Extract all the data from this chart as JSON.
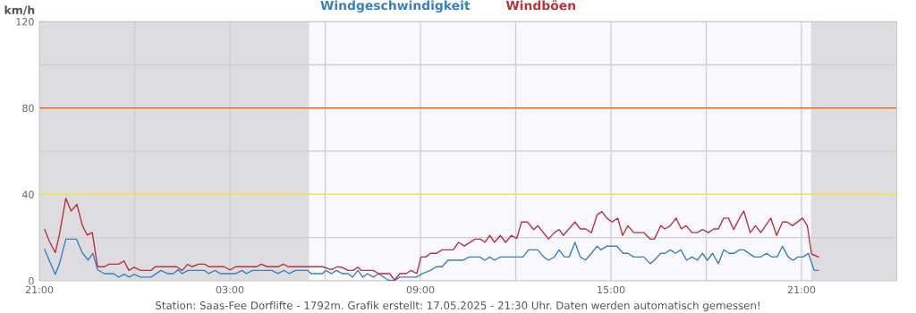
{
  "chart_data": {
    "type": "line",
    "ylabel": "km/h",
    "annotations": [
      "Station: Saas-Fee Dorflifte - 1792m. Grafik erstellt: 17.05.2025 - 21:30 Uhr. Daten werden automatisch gemessen!"
    ],
    "xlim": [
      "2025-05-16T21:00",
      "2025-05-18T00:00"
    ],
    "xticks": [
      {
        "value": "2025-05-16T21:00",
        "label": "21:00"
      },
      {
        "value": "2025-05-17T00:00",
        "label": null
      },
      {
        "value": "2025-05-17T03:00",
        "label": "03:00"
      },
      {
        "value": "2025-05-17T06:00",
        "label": null
      },
      {
        "value": "2025-05-17T09:00",
        "label": "09:00"
      },
      {
        "value": "2025-05-17T12:00",
        "label": null
      },
      {
        "value": "2025-05-17T15:00",
        "label": "15:00"
      },
      {
        "value": "2025-05-17T18:00",
        "label": null
      },
      {
        "value": "2025-05-17T21:00",
        "label": "21:00"
      }
    ],
    "ylim": [
      0,
      120
    ],
    "yticks": [
      0,
      {
        "value": 20,
        "label": null
      },
      40,
      {
        "value": 60,
        "label": null
      },
      80,
      {
        "value": 100,
        "label": null
      },
      120
    ],
    "grid": true,
    "legend": "top",
    "bands": [
      {
        "axis": "x",
        "from": "2025-05-16T21:00",
        "to": "2025-05-17T05:30",
        "color": "#dddde1"
      },
      {
        "axis": "x",
        "from": "2025-05-17T05:30",
        "to": "2025-05-17T21:18",
        "color": "#faf8ff"
      },
      {
        "axis": "x",
        "from": "2025-05-17T21:18",
        "to": "2025-05-18T00:00",
        "color": "#dddde1"
      }
    ],
    "ref_lines": [
      {
        "axis": "y",
        "value": 40,
        "color": "#f0f000"
      },
      {
        "axis": "y",
        "value": 80,
        "color": "#ff6a20"
      },
      {
        "axis": "y",
        "value": 120,
        "color": "#ee82ee"
      }
    ],
    "series": [
      {
        "name": "Windgeschwindigkeit",
        "color": "#3a7fc1",
        "x": [
          "2025-05-16T21:10",
          "2025-05-16T21:19",
          "2025-05-16T21:30",
          "2025-05-16T21:38",
          "2025-05-16T21:50",
          "2025-05-16T22:10",
          "2025-05-16T22:21",
          "2025-05-16T22:32",
          "2025-05-16T22:41",
          "2025-05-16T22:50",
          "2025-05-16T23:03",
          "2025-05-16T23:20",
          "2025-05-16T23:30",
          "2025-05-16T23:40",
          "2025-05-16T23:50",
          "2025-05-16T23:59",
          "2025-05-17T00:11",
          "2025-05-17T00:31",
          "2025-05-17T00:50",
          "2025-05-17T01:02",
          "2025-05-17T01:13",
          "2025-05-17T01:22",
          "2025-05-17T01:30",
          "2025-05-17T01:41",
          "2025-05-17T02:12",
          "2025-05-17T02:20",
          "2025-05-17T02:32",
          "2025-05-17T02:42",
          "2025-05-17T03:11",
          "2025-05-17T03:23",
          "2025-05-17T03:31",
          "2025-05-17T03:43",
          "2025-05-17T04:19",
          "2025-05-17T04:31",
          "2025-05-17T04:42",
          "2025-05-17T04:52",
          "2025-05-17T05:04",
          "2025-05-17T05:27",
          "2025-05-17T05:33",
          "2025-05-17T05:55",
          "2025-05-17T06:01",
          "2025-05-17T06:12",
          "2025-05-17T06:21",
          "2025-05-17T06:32",
          "2025-05-17T06:43",
          "2025-05-17T06:52",
          "2025-05-17T07:02",
          "2025-05-17T07:11",
          "2025-05-17T07:20",
          "2025-05-17T07:31",
          "2025-05-17T07:41",
          "2025-05-17T07:59",
          "2025-05-17T08:10",
          "2025-05-17T08:21",
          "2025-05-17T08:52",
          "2025-05-17T09:04",
          "2025-05-17T09:19",
          "2025-05-17T09:30",
          "2025-05-17T09:41",
          "2025-05-17T09:52",
          "2025-05-17T10:20",
          "2025-05-17T10:32",
          "2025-05-17T10:52",
          "2025-05-17T11:02",
          "2025-05-17T11:11",
          "2025-05-17T11:20",
          "2025-05-17T11:31",
          "2025-05-17T12:14",
          "2025-05-17T12:24",
          "2025-05-17T12:42",
          "2025-05-17T12:53",
          "2025-05-17T13:02",
          "2025-05-17T13:13",
          "2025-05-17T13:22",
          "2025-05-17T13:32",
          "2025-05-17T13:41",
          "2025-05-17T13:52",
          "2025-05-17T14:02",
          "2025-05-17T14:12",
          "2025-05-17T14:23",
          "2025-05-17T14:34",
          "2025-05-17T14:41",
          "2025-05-17T14:52",
          "2025-05-17T15:11",
          "2025-05-17T15:23",
          "2025-05-17T15:32",
          "2025-05-17T15:43",
          "2025-05-17T16:02",
          "2025-05-17T16:14",
          "2025-05-17T16:22",
          "2025-05-17T16:34",
          "2025-05-17T16:42",
          "2025-05-17T16:52",
          "2025-05-17T17:02",
          "2025-05-17T17:12",
          "2025-05-17T17:23",
          "2025-05-17T17:33",
          "2025-05-17T17:43",
          "2025-05-17T17:53",
          "2025-05-17T18:02",
          "2025-05-17T18:12",
          "2025-05-17T18:23",
          "2025-05-17T18:33",
          "2025-05-17T18:43",
          "2025-05-17T18:52",
          "2025-05-17T19:03",
          "2025-05-17T19:11",
          "2025-05-17T19:31",
          "2025-05-17T19:43",
          "2025-05-17T19:54",
          "2025-05-17T20:04",
          "2025-05-17T20:14",
          "2025-05-17T20:24",
          "2025-05-17T20:35",
          "2025-05-17T20:44",
          "2025-05-17T20:53",
          "2025-05-17T21:03",
          "2025-05-17T21:13",
          "2025-05-17T21:24",
          "2025-05-17T21:32"
        ],
        "values": [
          14.5,
          9.2,
          3.0,
          7.9,
          19.3,
          19.3,
          13,
          9.6,
          12.7,
          5.1,
          3.3,
          3.3,
          1.7,
          3.0,
          1.7,
          3.0,
          1.7,
          1.7,
          4.8,
          3.3,
          3.3,
          5.1,
          3.3,
          4.8,
          4.8,
          3.3,
          4.8,
          3.3,
          3.3,
          4.8,
          3.3,
          4.8,
          4.8,
          3.3,
          4.8,
          3.3,
          4.8,
          4.8,
          3.3,
          3.3,
          4.8,
          3.3,
          4.8,
          3.3,
          3.3,
          1.7,
          4.8,
          1.7,
          3.3,
          1.7,
          3.3,
          0.3,
          0,
          1.7,
          1.7,
          3.3,
          4.8,
          6.5,
          6.5,
          9.5,
          9.5,
          11,
          11,
          9.5,
          11,
          9.5,
          11,
          11,
          14.3,
          14.3,
          11,
          9.5,
          11,
          14.3,
          11,
          11,
          17.8,
          11,
          9.6,
          12.7,
          16,
          14.3,
          16,
          16,
          12.7,
          12.7,
          11,
          11,
          7.9,
          9.5,
          12.7,
          12.7,
          14.3,
          12.7,
          14.3,
          9.5,
          11,
          9.5,
          12.7,
          9.5,
          12.7,
          7.9,
          14.3,
          12.7,
          12.7,
          14.3,
          14.3,
          11,
          11,
          12.7,
          11,
          11,
          16,
          11,
          9.5,
          11,
          11,
          12.7,
          4.8,
          4.8
        ]
      },
      {
        "name": "Windböen",
        "color": "#b8333a",
        "x": [
          "2025-05-16T21:10",
          "2025-05-16T21:19",
          "2025-05-16T21:30",
          "2025-05-16T21:38",
          "2025-05-16T21:50",
          "2025-05-16T22:00",
          "2025-05-16T22:11",
          "2025-05-16T22:21",
          "2025-05-16T22:30",
          "2025-05-16T22:40",
          "2025-05-16T22:50",
          "2025-05-16T23:03",
          "2025-05-16T23:11",
          "2025-05-16T23:30",
          "2025-05-16T23:40",
          "2025-05-16T23:49",
          "2025-05-16T23:59",
          "2025-05-17T00:11",
          "2025-05-17T00:31",
          "2025-05-17T00:39",
          "2025-05-17T01:19",
          "2025-05-17T01:30",
          "2025-05-17T01:40",
          "2025-05-17T01:48",
          "2025-05-17T02:01",
          "2025-05-17T02:12",
          "2025-05-17T02:20",
          "2025-05-17T02:49",
          "2025-05-17T03:00",
          "2025-05-17T03:11",
          "2025-05-17T03:51",
          "2025-05-17T03:59",
          "2025-05-17T04:11",
          "2025-05-17T04:31",
          "2025-05-17T04:41",
          "2025-05-17T04:50",
          "2025-05-17T05:55",
          "2025-05-17T06:12",
          "2025-05-17T06:23",
          "2025-05-17T06:32",
          "2025-05-17T06:43",
          "2025-05-17T06:53",
          "2025-05-17T07:02",
          "2025-05-17T07:08",
          "2025-05-17T07:31",
          "2025-05-17T07:41",
          "2025-05-17T08:02",
          "2025-05-17T08:11",
          "2025-05-17T08:21",
          "2025-05-17T08:33",
          "2025-05-17T08:42",
          "2025-05-17T08:53",
          "2025-05-17T09:01",
          "2025-05-17T09:10",
          "2025-05-17T09:19",
          "2025-05-17T09:30",
          "2025-05-17T09:41",
          "2025-05-17T10:02",
          "2025-05-17T10:12",
          "2025-05-17T10:23",
          "2025-05-17T10:43",
          "2025-05-17T10:53",
          "2025-05-17T11:02",
          "2025-05-17T11:11",
          "2025-05-17T11:20",
          "2025-05-17T11:31",
          "2025-05-17T11:41",
          "2025-05-17T11:52",
          "2025-05-17T12:02",
          "2025-05-17T12:11",
          "2025-05-17T12:22",
          "2025-05-17T12:34",
          "2025-05-17T12:42",
          "2025-05-17T13:02",
          "2025-05-17T13:13",
          "2025-05-17T13:22",
          "2025-05-17T13:30",
          "2025-05-17T13:52",
          "2025-05-17T14:02",
          "2025-05-17T14:12",
          "2025-05-17T14:23",
          "2025-05-17T14:34",
          "2025-05-17T14:43",
          "2025-05-17T14:52",
          "2025-05-17T15:02",
          "2025-05-17T15:13",
          "2025-05-17T15:22",
          "2025-05-17T15:32",
          "2025-05-17T15:43",
          "2025-05-17T16:02",
          "2025-05-17T16:14",
          "2025-05-17T16:22",
          "2025-05-17T16:34",
          "2025-05-17T16:42",
          "2025-05-17T16:52",
          "2025-05-17T17:03",
          "2025-05-17T17:13",
          "2025-05-17T17:22",
          "2025-05-17T17:33",
          "2025-05-17T17:43",
          "2025-05-17T17:53",
          "2025-05-17T18:04",
          "2025-05-17T18:14",
          "2025-05-17T18:23",
          "2025-05-17T18:33",
          "2025-05-17T18:42",
          "2025-05-17T18:52",
          "2025-05-17T19:03",
          "2025-05-17T19:11",
          "2025-05-17T19:23",
          "2025-05-17T19:33",
          "2025-05-17T19:43",
          "2025-05-17T20:02",
          "2025-05-17T20:13",
          "2025-05-17T20:24",
          "2025-05-17T20:33",
          "2025-05-17T20:43",
          "2025-05-17T21:02",
          "2025-05-17T21:11",
          "2025-05-17T21:19",
          "2025-05-17T21:32"
        ],
        "values": [
          23.7,
          18.2,
          13,
          21.6,
          38.2,
          32.3,
          35.4,
          25.8,
          21.2,
          22.3,
          6.5,
          6.5,
          7.7,
          7.7,
          9.2,
          4.8,
          6.2,
          4.8,
          4.8,
          6.5,
          6.5,
          4.8,
          7.6,
          6.5,
          7.7,
          7.7,
          6.5,
          6.5,
          5,
          6.5,
          6.5,
          7.7,
          6.5,
          6.5,
          7.7,
          6.5,
          6.5,
          5.1,
          6.5,
          6.2,
          4.8,
          4.8,
          6.3,
          4.8,
          4.8,
          3.3,
          3.3,
          0.3,
          3.3,
          3.3,
          4.8,
          3.3,
          11,
          11,
          12.7,
          12.7,
          14.3,
          14.3,
          17.8,
          16.1,
          19.3,
          19.3,
          17.8,
          21,
          17.8,
          21,
          17.8,
          21,
          19.6,
          27.2,
          27.2,
          23.7,
          25.5,
          19.3,
          22.3,
          23.7,
          21,
          27.2,
          24,
          24,
          22.3,
          30.6,
          32,
          29,
          27.2,
          29,
          21,
          25.5,
          22.3,
          22.3,
          19.3,
          19.3,
          25.5,
          24,
          25.5,
          29,
          24,
          25.5,
          22.3,
          22.3,
          23.7,
          22.3,
          24,
          24,
          29,
          29,
          23.7,
          29,
          32.3,
          22.3,
          25.5,
          22.3,
          29,
          21,
          27.2,
          27.2,
          25.5,
          29,
          25.5,
          12.4,
          11
        ]
      }
    ]
  }
}
